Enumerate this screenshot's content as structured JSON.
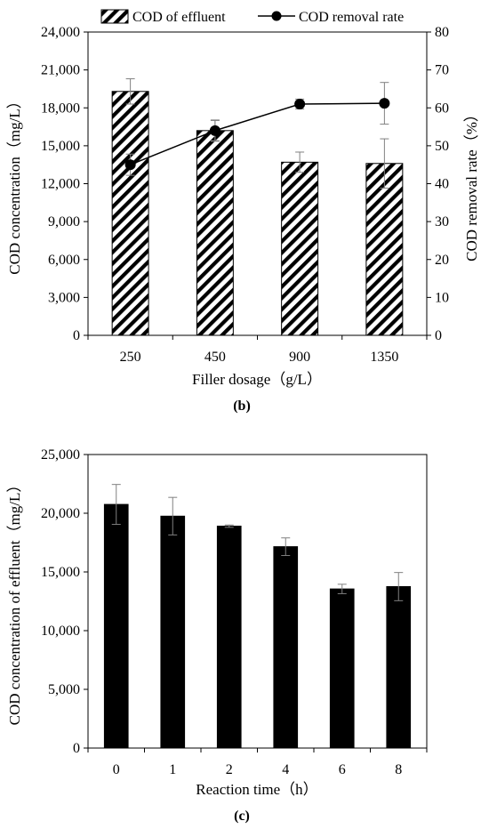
{
  "chart_data": [
    {
      "type": "bar",
      "panel_label": "(b)",
      "categories": [
        "250",
        "450",
        "900",
        "1350"
      ],
      "xlabel": "Filler dosage（g/L）",
      "ylabel": "COD concentration（mg/L）",
      "y2label": "COD removal rate（%）",
      "ylim": [
        0,
        24000
      ],
      "y2lim": [
        0,
        80
      ],
      "yticks": [
        "0",
        "3,000",
        "6,000",
        "9,000",
        "12,000",
        "15,000",
        "18,000",
        "21,000",
        "24,000"
      ],
      "y2ticks": [
        "0",
        "10",
        "20",
        "30",
        "40",
        "50",
        "60",
        "70",
        "80"
      ],
      "legend": {
        "placement": "top",
        "entries": [
          "COD of effluent",
          "COD removal rate"
        ]
      },
      "series": [
        {
          "name": "COD of effluent",
          "kind": "bar",
          "pattern": "hatched",
          "axis": "left",
          "values": [
            19300,
            16200,
            13700,
            13600
          ],
          "errors": [
            1000,
            800,
            800,
            1950
          ]
        },
        {
          "name": "COD removal rate",
          "kind": "line",
          "marker": "circle",
          "axis": "right",
          "values": [
            45,
            54,
            61,
            61.2
          ],
          "errors": [
            2.8,
            2.8,
            1.3,
            5.5
          ]
        }
      ]
    },
    {
      "type": "bar",
      "panel_label": "(c)",
      "categories": [
        "0",
        "1",
        "2",
        "4",
        "6",
        "8"
      ],
      "xlabel": "Reaction time（h）",
      "ylabel": "COD concentration of effluent（mg/L）",
      "ylim": [
        0,
        25000
      ],
      "yticks": [
        "0",
        "5,000",
        "10,000",
        "15,000",
        "20,000",
        "25,000"
      ],
      "series": [
        {
          "kind": "bar",
          "color": "#000000",
          "values": [
            20750,
            19750,
            18900,
            17150,
            13550,
            13750
          ],
          "errors": [
            1700,
            1600,
            100,
            750,
            400,
            1200
          ]
        }
      ]
    }
  ]
}
